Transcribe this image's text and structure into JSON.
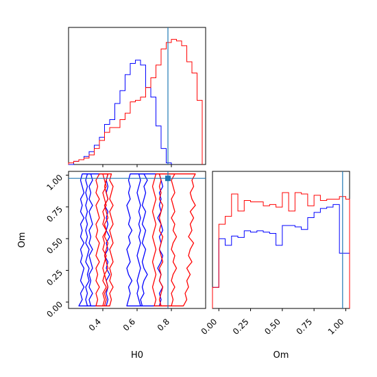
{
  "chart_data": {
    "type": "corner",
    "parameters": [
      "H0",
      "Om"
    ],
    "truth": {
      "H0": 0.78,
      "Om": 0.975
    },
    "colors": {
      "blue": "#0000ff",
      "red": "#ff0000",
      "truth": "#1f77b4"
    },
    "panels": [
      {
        "id": "hist-H0",
        "type": "step-histogram",
        "xlim": [
          0.2,
          1.0
        ],
        "series": [
          {
            "color": "blue",
            "bins": [
              0.2,
              0.23,
              0.26,
              0.29,
              0.32,
              0.35,
              0.38,
              0.41,
              0.44,
              0.47,
              0.5,
              0.53,
              0.56,
              0.59,
              0.62,
              0.65,
              0.68,
              0.71,
              0.74,
              0.77,
              0.8
            ],
            "values": [
              0,
              2,
              3,
              5,
              8,
              12,
              17,
              25,
              28,
              38,
              46,
              56,
              63,
              65,
              62,
              48,
              42,
              24,
              10,
              1
            ]
          },
          {
            "color": "red",
            "bins": [
              0.2,
              0.23,
              0.26,
              0.29,
              0.32,
              0.35,
              0.38,
              0.41,
              0.44,
              0.47,
              0.5,
              0.53,
              0.56,
              0.59,
              0.62,
              0.65,
              0.68,
              0.71,
              0.74,
              0.77,
              0.8,
              0.83,
              0.86,
              0.89,
              0.92,
              0.95,
              0.98
            ],
            "values": [
              1,
              2,
              3,
              4,
              6,
              10,
              15,
              20,
              23,
              23,
              28,
              32,
              39,
              40,
              42,
              48,
              54,
              62,
              72,
              76,
              78,
              77,
              74,
              64,
              57,
              40
            ]
          }
        ]
      },
      {
        "id": "contour-H0-Om",
        "type": "contour",
        "xlim": [
          0.2,
          1.0
        ],
        "ylim": [
          -0.05,
          1.03
        ],
        "xticks": [
          0.4,
          0.6,
          0.8
        ],
        "xtick_labels": [
          "0.4",
          "0.6",
          "0.8"
        ],
        "yticks": [
          0.0,
          0.25,
          0.5,
          0.75,
          1.0
        ],
        "ytick_labels": [
          "0.00",
          "0.25",
          "0.50",
          "0.75",
          "1.00"
        ],
        "xlabel": "H0",
        "ylabel": "Om",
        "series": [
          {
            "color": "blue",
            "level": "inner",
            "xmin": [
              0.31,
              0.3,
              0.31,
              0.3,
              0.32,
              0.31,
              0.32,
              0.3,
              0.31,
              0.32,
              0.3,
              0.31,
              0.3,
              0.31,
              0.3,
              0.31,
              0.3,
              0.31,
              0.3,
              0.31,
              0.3,
              0.31
            ],
            "xmax": [
              0.42,
              0.43,
              0.42,
              0.43,
              0.42,
              0.44,
              0.42,
              0.43,
              0.41,
              0.43,
              0.42,
              0.44,
              0.42,
              0.43,
              0.42,
              0.43,
              0.41,
              0.43,
              0.42,
              0.43,
              0.42,
              0.43
            ]
          },
          {
            "color": "blue",
            "level": "outer",
            "xmin": [
              0.26,
              0.28,
              0.27,
              0.29,
              0.27,
              0.28,
              0.29,
              0.27,
              0.28,
              0.27,
              0.29,
              0.27,
              0.28,
              0.27,
              0.29,
              0.27,
              0.28,
              0.27,
              0.29,
              0.28,
              0.27,
              0.28
            ],
            "xmax": [
              0.33,
              0.32,
              0.34,
              0.32,
              0.33,
              0.32,
              0.34,
              0.33,
              0.32,
              0.34,
              0.32,
              0.33,
              0.32,
              0.34,
              0.33,
              0.32,
              0.34,
              0.32,
              0.33,
              0.32,
              0.34,
              0.33
            ]
          },
          {
            "color": "blue",
            "level": "outer",
            "xmin": [
              0.54,
              0.55,
              0.56,
              0.55,
              0.57,
              0.55,
              0.54,
              0.56,
              0.55,
              0.54,
              0.56,
              0.55,
              0.57,
              0.55,
              0.56,
              0.55,
              0.54,
              0.56,
              0.55,
              0.56,
              0.55,
              0.56
            ],
            "xmax": [
              0.63,
              0.62,
              0.64,
              0.63,
              0.64,
              0.66,
              0.64,
              0.63,
              0.64,
              0.65,
              0.63,
              0.64,
              0.65,
              0.63,
              0.64,
              0.65,
              0.63,
              0.64,
              0.65,
              0.64,
              0.66,
              0.64
            ]
          },
          {
            "color": "blue",
            "level": "outer",
            "xmin": [
              0.62,
              0.61,
              0.6,
              0.61,
              0.6,
              0.61,
              0.62,
              0.61,
              0.6,
              0.61,
              0.62,
              0.61,
              0.62,
              0.61,
              0.62,
              0.61,
              0.62,
              0.61,
              0.6,
              0.61,
              0.62,
              0.61
            ],
            "xmax": [
              0.73,
              0.74,
              0.73,
              0.75,
              0.73,
              0.74,
              0.72,
              0.74,
              0.75,
              0.73,
              0.74,
              0.73,
              0.75,
              0.74,
              0.72,
              0.74,
              0.73,
              0.74,
              0.73,
              0.75,
              0.74,
              0.73
            ]
          },
          {
            "color": "red",
            "level": "inner",
            "xmin": [
              0.4,
              0.41,
              0.4,
              0.42,
              0.4,
              0.41,
              0.4,
              0.41,
              0.42,
              0.4,
              0.41,
              0.4,
              0.42,
              0.4,
              0.41,
              0.4,
              0.42,
              0.41,
              0.4,
              0.42,
              0.41,
              0.4
            ],
            "xmax": [
              0.44,
              0.45,
              0.44,
              0.46,
              0.44,
              0.45,
              0.44,
              0.46,
              0.45,
              0.44,
              0.46,
              0.45,
              0.44,
              0.46,
              0.45,
              0.44,
              0.46,
              0.44,
              0.45,
              0.46,
              0.44,
              0.45
            ]
          },
          {
            "color": "red",
            "level": "outer",
            "xmin": [
              0.36,
              0.37,
              0.36,
              0.38,
              0.36,
              0.37,
              0.36,
              0.38,
              0.36,
              0.37,
              0.38,
              0.36,
              0.37,
              0.36,
              0.38,
              0.37,
              0.36,
              0.38,
              0.36,
              0.37,
              0.36,
              0.38
            ],
            "xmax": [
              0.41,
              0.42,
              0.41,
              0.43,
              0.42,
              0.41,
              0.43,
              0.42,
              0.41,
              0.42,
              0.43,
              0.41,
              0.42,
              0.41,
              0.43,
              0.42,
              0.41,
              0.43,
              0.42,
              0.41,
              0.42,
              0.43
            ]
          },
          {
            "color": "red",
            "level": "inner",
            "xmin": [
              0.74,
              0.73,
              0.74,
              0.75,
              0.73,
              0.74,
              0.73,
              0.75,
              0.74,
              0.73,
              0.74,
              0.75,
              0.73,
              0.74,
              0.73,
              0.74,
              0.75,
              0.73,
              0.74,
              0.73,
              0.74,
              0.73
            ],
            "xmax": [
              0.8,
              0.81,
              0.8,
              0.82,
              0.8,
              0.81,
              0.83,
              0.81,
              0.82,
              0.8,
              0.81,
              0.83,
              0.81,
              0.82,
              0.8,
              0.82,
              0.81,
              0.8,
              0.82,
              0.81,
              0.8,
              0.82
            ]
          },
          {
            "color": "red",
            "level": "outer",
            "xmin": [
              0.7,
              0.71,
              0.7,
              0.69,
              0.7,
              0.71,
              0.7,
              0.69,
              0.7,
              0.71,
              0.7,
              0.69,
              0.7,
              0.71,
              0.7,
              0.69,
              0.7,
              0.71,
              0.7,
              0.69,
              0.7,
              0.71
            ],
            "xmax": [
              0.87,
              0.89,
              0.88,
              0.9,
              0.89,
              0.91,
              0.89,
              0.92,
              0.9,
              0.91,
              0.93,
              0.9,
              0.92,
              0.91,
              0.93,
              0.91,
              0.94,
              0.92,
              0.91,
              0.93,
              0.92,
              0.94
            ]
          }
        ]
      },
      {
        "id": "hist-Om",
        "type": "step-histogram",
        "xlim": [
          -0.05,
          1.03
        ],
        "xticks": [
          0.0,
          0.25,
          0.5,
          0.75,
          1.0
        ],
        "xtick_labels": [
          "0.00",
          "0.25",
          "0.50",
          "0.75",
          "1.00"
        ],
        "xlabel": "Om",
        "series": [
          {
            "color": "blue",
            "bins": [
              -0.05,
              0.0,
              0.05,
              0.1,
              0.15,
              0.2,
              0.25,
              0.3,
              0.35,
              0.4,
              0.45,
              0.5,
              0.55,
              0.6,
              0.65,
              0.7,
              0.75,
              0.8,
              0.85,
              0.9,
              0.95,
              1.0,
              1.03
            ],
            "values": [
              0.16,
              0.53,
              0.48,
              0.55,
              0.54,
              0.59,
              0.58,
              0.59,
              0.58,
              0.57,
              0.48,
              0.63,
              0.63,
              0.62,
              0.6,
              0.69,
              0.73,
              0.76,
              0.77,
              0.79,
              0.42,
              0.42
            ]
          },
          {
            "color": "red",
            "bins": [
              -0.05,
              0.0,
              0.05,
              0.1,
              0.15,
              0.2,
              0.25,
              0.3,
              0.35,
              0.4,
              0.45,
              0.5,
              0.55,
              0.6,
              0.65,
              0.7,
              0.75,
              0.8,
              0.85,
              0.9,
              0.95,
              1.0,
              1.03
            ],
            "values": [
              0.16,
              0.64,
              0.7,
              0.87,
              0.74,
              0.82,
              0.81,
              0.81,
              0.78,
              0.79,
              0.77,
              0.88,
              0.74,
              0.88,
              0.87,
              0.78,
              0.86,
              0.82,
              0.83,
              0.83,
              0.85,
              0.83
            ]
          }
        ]
      }
    ]
  }
}
